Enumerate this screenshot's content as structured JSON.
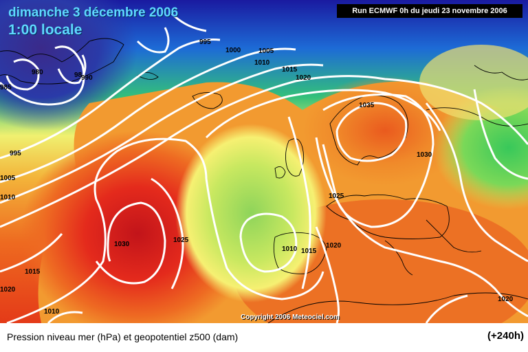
{
  "header": {
    "date_label": "dimanche 3 décembre 2006",
    "time_label": "1:00 locale",
    "run_label": "Run ECMWF 0h du jeudi 23 novembre 2006"
  },
  "footer": {
    "caption": "Pression niveau mer (hPa) et geopotentiel z500 (dam)",
    "lead_time": "(+240h)"
  },
  "copyright": "Copyright 2006 Meteociel.com",
  "isobar_labels": [
    "980",
    "985",
    "98",
    "990",
    "995",
    "995",
    "1000",
    "1005",
    "1005",
    "1010",
    "1010",
    "1015",
    "1020",
    "1035",
    "1030",
    "1025",
    "1030",
    "1025",
    "1010",
    "1015",
    "1020",
    "1015",
    "1010",
    "1020",
    "1020"
  ],
  "colors": {
    "low_geopotential": "#1a1a8a",
    "mid_geopotential": "#f5f57a",
    "high_geopotential": "#e8201c",
    "isobar": "#ffffff",
    "title_text": "#5fd8ff"
  }
}
